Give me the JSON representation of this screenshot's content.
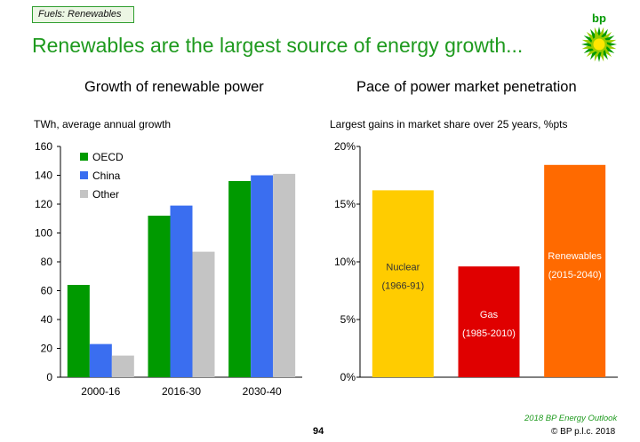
{
  "section_tag": "Fuels: Renewables",
  "headline": "Renewables are the largest source of energy growth...",
  "logo": {
    "text": "bp",
    "icon": "bp-helios-icon",
    "colors": [
      "#009900",
      "#99cc00",
      "#ffe600"
    ]
  },
  "footer": {
    "source": "2018 BP Energy Outlook",
    "page": "94",
    "copyright": "© BP p.l.c. 2018"
  },
  "chart_data": [
    {
      "type": "bar",
      "title": "Growth of renewable power",
      "subtitle": "TWh, average annual growth",
      "categories": [
        "2000-16",
        "2016-30",
        "2030-40"
      ],
      "series": [
        {
          "name": "OECD",
          "color": "#009a00",
          "values": [
            64,
            112,
            136
          ]
        },
        {
          "name": "China",
          "color": "#3a6ef0",
          "values": [
            23,
            119,
            140
          ]
        },
        {
          "name": "Other",
          "color": "#c4c4c4",
          "values": [
            15,
            87,
            141
          ]
        }
      ],
      "ylim": [
        0,
        160
      ],
      "yticks": [
        "0",
        "20",
        "40",
        "60",
        "80",
        "100",
        "120",
        "140",
        "160"
      ],
      "legend_position": "top-left",
      "grid": false
    },
    {
      "type": "bar",
      "title": "Pace of power market penetration",
      "subtitle": "Largest gains in market share over 25 years, %pts",
      "categories": [
        "Nuclear",
        "Gas",
        "Renewables"
      ],
      "periods": [
        "(1966-91)",
        "(1985-2010)",
        "(2015-2040)"
      ],
      "values": [
        16.2,
        9.6,
        18.4
      ],
      "colors": [
        "#ffcc00",
        "#e00000",
        "#ff6a00"
      ],
      "label_colors": [
        "#333333",
        "#ffffff",
        "#ffffff"
      ],
      "ylim": [
        0,
        20
      ],
      "yticks": [
        "0%",
        "5%",
        "10%",
        "15%",
        "20%"
      ],
      "grid": false
    }
  ]
}
